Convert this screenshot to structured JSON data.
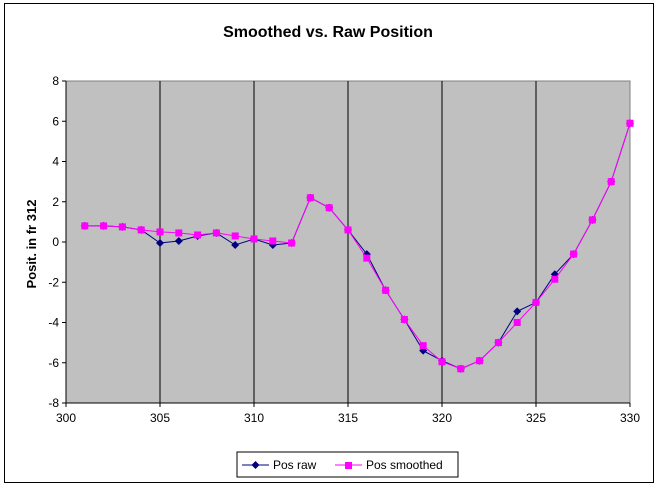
{
  "chart_data": {
    "type": "line",
    "title": "Smoothed vs. Raw Position",
    "xlabel": "",
    "ylabel": "Posit. in fr 312",
    "xlim": [
      300,
      330
    ],
    "ylim": [
      -8,
      8
    ],
    "x_ticks": [
      300,
      305,
      310,
      315,
      320,
      325,
      330
    ],
    "y_ticks": [
      -8,
      -6,
      -4,
      -2,
      0,
      2,
      4,
      6,
      8
    ],
    "grid": "vertical",
    "plot_background": "#c0c0c0",
    "legend_position": "bottom",
    "x": [
      301,
      302,
      303,
      304,
      305,
      306,
      307,
      308,
      309,
      310,
      311,
      312,
      313,
      314,
      315,
      316,
      317,
      318,
      319,
      320,
      321,
      322,
      323,
      324,
      325,
      326,
      327,
      328,
      329,
      330
    ],
    "series": [
      {
        "name": "Pos raw",
        "color": "#000080",
        "marker": "diamond",
        "values": [
          0.8,
          0.8,
          0.75,
          0.6,
          -0.05,
          0.05,
          0.3,
          0.45,
          -0.15,
          0.15,
          -0.15,
          -0.05,
          2.2,
          1.7,
          0.6,
          -0.6,
          -2.4,
          -3.85,
          -5.4,
          -5.9,
          -6.3,
          -5.9,
          -5.0,
          -3.45,
          -3.0,
          -1.6,
          -0.6,
          1.1,
          3.0,
          5.9
        ]
      },
      {
        "name": "Pos smoothed",
        "color": "#ff00ff",
        "marker": "square",
        "values": [
          0.8,
          0.8,
          0.75,
          0.6,
          0.5,
          0.45,
          0.35,
          0.45,
          0.3,
          0.15,
          0.05,
          -0.05,
          2.2,
          1.7,
          0.6,
          -0.8,
          -2.4,
          -3.85,
          -5.15,
          -5.95,
          -6.3,
          -5.9,
          -5.0,
          -4.0,
          -3.0,
          -1.85,
          -0.6,
          1.1,
          3.0,
          5.9
        ]
      }
    ]
  }
}
